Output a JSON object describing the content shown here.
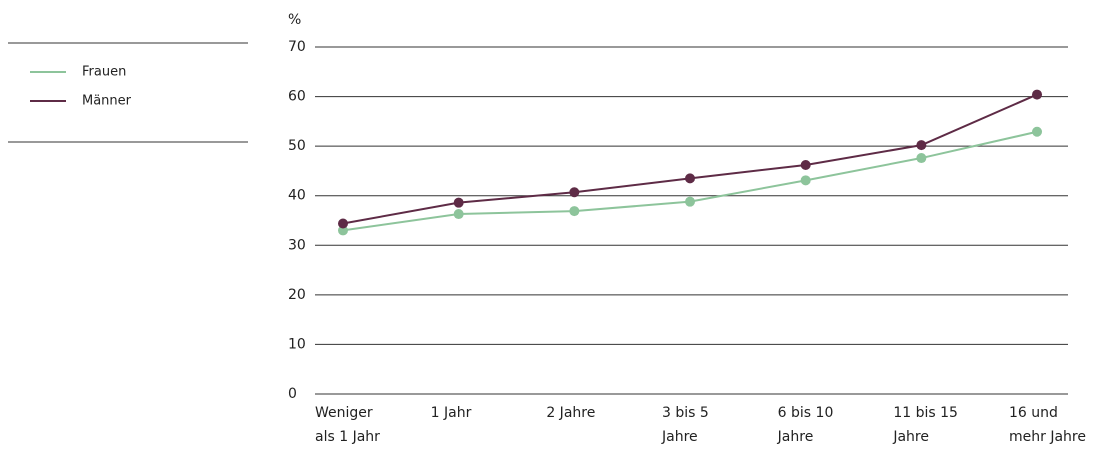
{
  "chart_data": {
    "type": "line",
    "y_label": "%",
    "categories": [
      "Weniger\nals 1 Jahr",
      "1 Jahr",
      "2 Jahre",
      "3 bis 5\nJahre",
      "6 bis 10\nJahre",
      "11 bis 15\nJahre",
      "16 und\nmehr Jahre"
    ],
    "series": [
      {
        "name": "Frauen",
        "color": "#8dc49b",
        "values": [
          33,
          36.3,
          36.9,
          38.8,
          43.1,
          47.6,
          52.9
        ]
      },
      {
        "name": "Männer",
        "color": "#5e2b46",
        "values": [
          34.4,
          38.6,
          40.7,
          43.5,
          46.2,
          50.2,
          60.4
        ]
      }
    ],
    "ylim": [
      0,
      70
    ],
    "yticks": [
      0,
      10,
      20,
      30,
      40,
      50,
      60,
      70
    ],
    "grid": true,
    "legend": "left"
  }
}
